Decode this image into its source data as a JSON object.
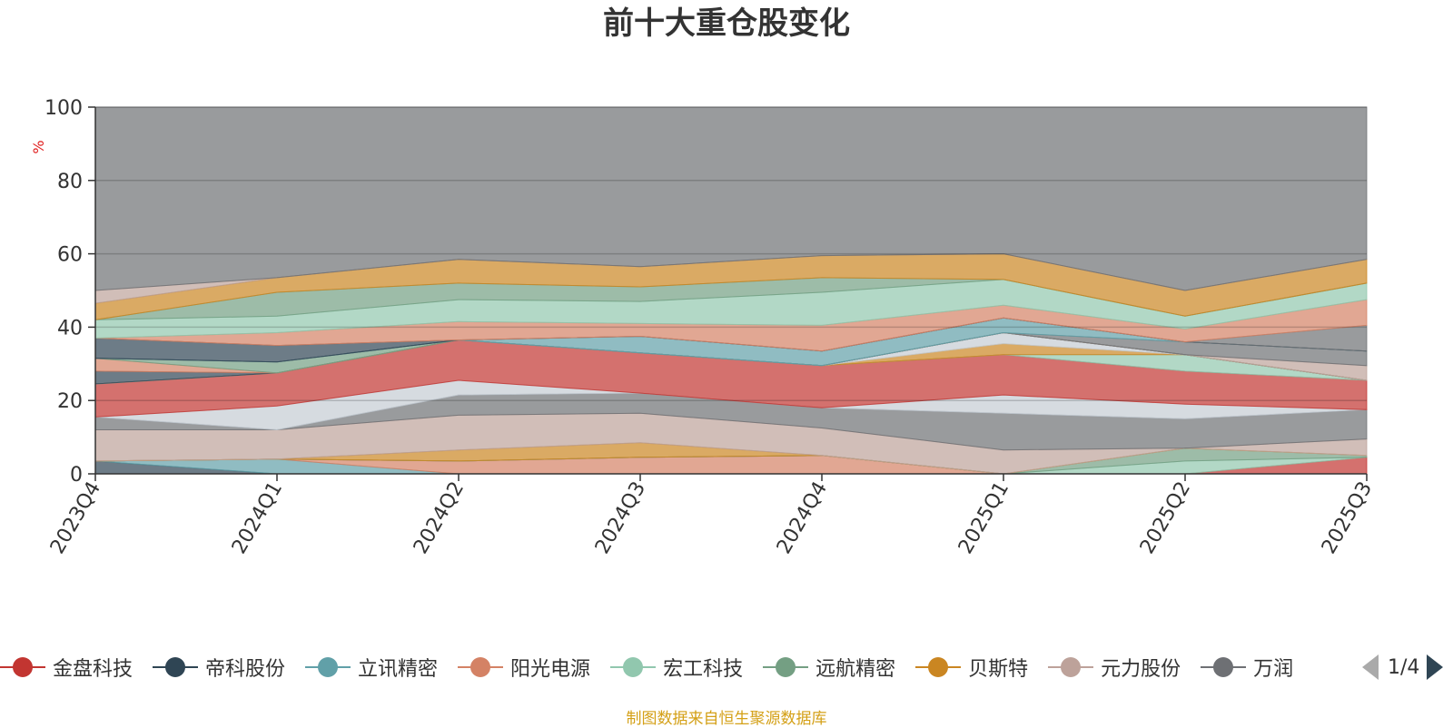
{
  "title": "前十大重仓股变化",
  "source_note": "制图数据来自恒生聚源数据库",
  "legend": {
    "items": [
      {
        "name": "金盘科技",
        "color": "#c23531"
      },
      {
        "name": "帝科股份",
        "color": "#2f4554"
      },
      {
        "name": "立讯精密",
        "color": "#61a0a8"
      },
      {
        "name": "阳光电源",
        "color": "#d48265"
      },
      {
        "name": "宏工科技",
        "color": "#91c7ae"
      },
      {
        "name": "远航精密",
        "color": "#749f83"
      },
      {
        "name": "贝斯特",
        "color": "#ca8622"
      },
      {
        "name": "元力股份",
        "color": "#bda29a"
      },
      {
        "name": "万润",
        "color": "#6e7074"
      }
    ],
    "page": "1/4"
  },
  "chart_data": {
    "type": "area",
    "stacked": true,
    "x": [
      "2023Q4",
      "2024Q1",
      "2024Q2",
      "2024Q3",
      "2024Q4",
      "2025Q1",
      "2025Q2",
      "2025Q3"
    ],
    "ylabel": "%",
    "ylim": [
      0,
      100
    ],
    "yticks": [
      0,
      20,
      40,
      60,
      80,
      100
    ],
    "grid": true,
    "legend_position": "bottom",
    "bands": [
      {
        "color": "#2f4554",
        "upper": [
          3.5,
          0,
          0,
          0,
          0,
          0,
          0,
          0
        ]
      },
      {
        "color": "#61a0a8",
        "upper": [
          3.5,
          4,
          0,
          0,
          0,
          0,
          0,
          0
        ]
      },
      {
        "color": "#d48265",
        "upper": [
          3.5,
          4,
          3.5,
          4.5,
          5,
          0,
          0,
          0
        ]
      },
      {
        "color": "#c23531",
        "upper": [
          3.5,
          4,
          3.5,
          4.5,
          5,
          0,
          0,
          4.5
        ]
      },
      {
        "color": "#91c7ae",
        "upper": [
          3.5,
          4,
          3.5,
          4.5,
          5,
          0,
          3.5,
          4.5
        ]
      },
      {
        "color": "#749f83",
        "upper": [
          3.5,
          4,
          3.5,
          4.5,
          5,
          0,
          7,
          5
        ]
      },
      {
        "color": "#ca8622",
        "upper": [
          3.5,
          4,
          6.5,
          8.5,
          5,
          0,
          7,
          5
        ]
      },
      {
        "color": "#bda29a",
        "upper": [
          12,
          12,
          16,
          16.5,
          12.5,
          6.5,
          7,
          9.5
        ]
      },
      {
        "color": "#6e7074",
        "upper": [
          15.5,
          12,
          21.5,
          22,
          18,
          16.5,
          15,
          17.5
        ]
      },
      {
        "color": "#c4ccd3",
        "upper": [
          15.5,
          18.5,
          25.5,
          22,
          18,
          21.5,
          19,
          17.5
        ]
      },
      {
        "color": "#c23531",
        "upper": [
          24.5,
          27.5,
          36.5,
          33,
          29.5,
          32.5,
          28,
          25.5
        ]
      },
      {
        "color": "#91c7ae",
        "upper": [
          24.5,
          27.5,
          36.5,
          33,
          29.5,
          32.5,
          32.5,
          25.5
        ]
      },
      {
        "color": "#ca8622",
        "upper": [
          24.5,
          27.5,
          36.5,
          33,
          29.5,
          35.5,
          32.5,
          25.5
        ]
      },
      {
        "color": "#c4ccd3",
        "upper": [
          24.5,
          27.5,
          36.5,
          33,
          29.5,
          38.5,
          32.5,
          25.5
        ]
      },
      {
        "color": "#2f4554",
        "upper": [
          28,
          27.5,
          36.5,
          33,
          29.5,
          38.5,
          32.5,
          25.5
        ]
      },
      {
        "color": "#d48265",
        "upper": [
          31.5,
          27.5,
          36.5,
          33,
          29.5,
          38.5,
          32.5,
          25.5
        ]
      },
      {
        "color": "#749f83",
        "upper": [
          31.5,
          30.5,
          36.5,
          33,
          29.5,
          38.5,
          32.5,
          25.5
        ]
      },
      {
        "color": "#bda29a",
        "upper": [
          31.5,
          30.5,
          36.5,
          33,
          29.5,
          38.5,
          32.5,
          29.5
        ]
      },
      {
        "color": "#6e7074",
        "upper": [
          31.5,
          30.5,
          36.5,
          33,
          29.5,
          38.5,
          36,
          33.5
        ]
      },
      {
        "color": "#61a0a8",
        "upper": [
          31.5,
          30.5,
          36.5,
          37.5,
          33.5,
          42.5,
          36,
          33.5
        ]
      },
      {
        "color": "#2f4554",
        "upper": [
          37,
          35,
          36.5,
          37.5,
          33.5,
          42.5,
          36,
          33.5
        ]
      },
      {
        "color": "#6e7074",
        "upper": [
          37,
          35,
          36.5,
          37.5,
          33.5,
          42.5,
          36,
          40.5
        ]
      },
      {
        "color": "#d48265",
        "upper": [
          37,
          38.5,
          41.5,
          41,
          40.5,
          46,
          39.5,
          47.5
        ]
      },
      {
        "color": "#91c7ae",
        "upper": [
          42,
          43,
          47.5,
          47,
          49.5,
          53,
          43,
          52
        ]
      },
      {
        "color": "#749f83",
        "upper": [
          42,
          49.5,
          52,
          51,
          53.5,
          53,
          43,
          52
        ]
      },
      {
        "color": "#ca8622",
        "upper": [
          46.5,
          53.5,
          58.5,
          56.5,
          59.5,
          60,
          50,
          58.5
        ]
      },
      {
        "color": "#bda29a",
        "upper": [
          50,
          53.5,
          58.5,
          56.5,
          59.5,
          60,
          50,
          58.5
        ]
      },
      {
        "color": "#6e7074",
        "upper": [
          100,
          100,
          100,
          100,
          100,
          100,
          100,
          100
        ]
      }
    ]
  }
}
